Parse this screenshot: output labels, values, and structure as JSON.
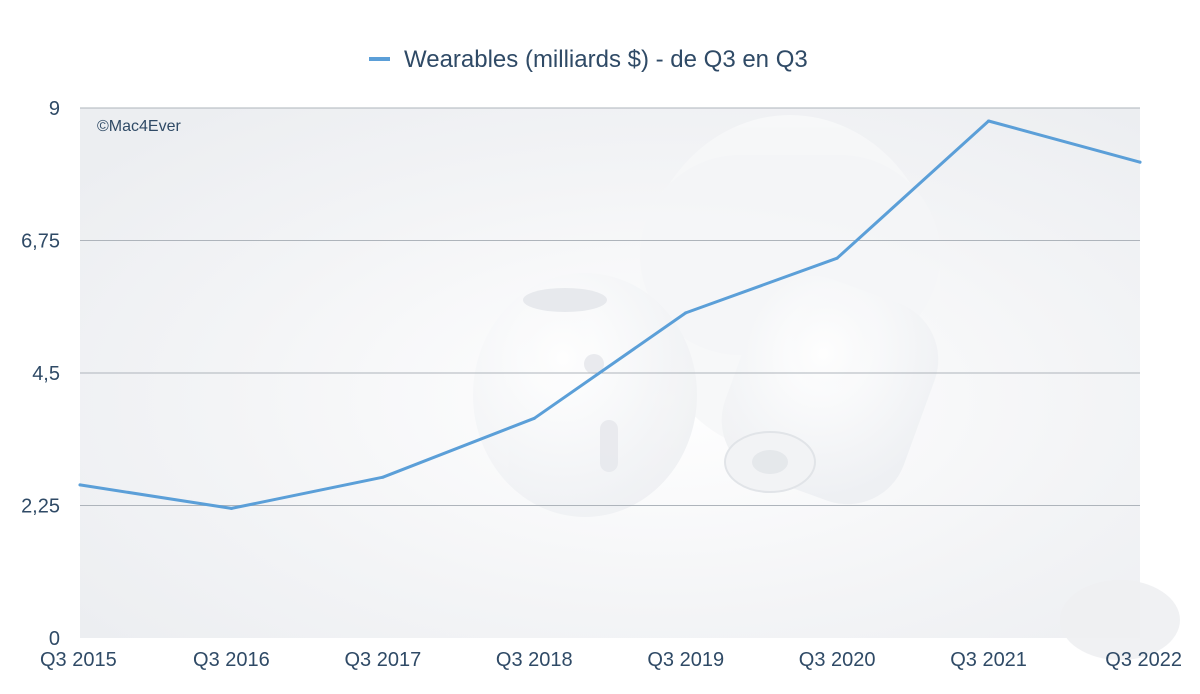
{
  "watermark": "©Mac4Ever",
  "colors": {
    "series": "#5b9fd8",
    "grid": "#aeb4bb",
    "text": "#2f4a66",
    "plot_background": "#f4f5f7"
  },
  "chart_data": {
    "type": "line",
    "title": "",
    "xlabel": "",
    "ylabel": "",
    "categories": [
      "Q3 2015",
      "Q3 2016",
      "Q3 2017",
      "Q3 2018",
      "Q3 2019",
      "Q3 2020",
      "Q3 2021",
      "Q3 2022"
    ],
    "series": [
      {
        "name": "Wearables (milliards $) - de Q3 en Q3",
        "values": [
          2.6,
          2.2,
          2.73,
          3.73,
          5.52,
          6.45,
          8.78,
          8.08
        ]
      }
    ],
    "ylim": [
      0,
      9
    ],
    "yticks": [
      0,
      2.25,
      4.5,
      6.75,
      9
    ],
    "ytick_labels": [
      "0",
      "2,25",
      "4,5",
      "6,75",
      "9"
    ],
    "grid": true,
    "legend_position": "top-center"
  }
}
